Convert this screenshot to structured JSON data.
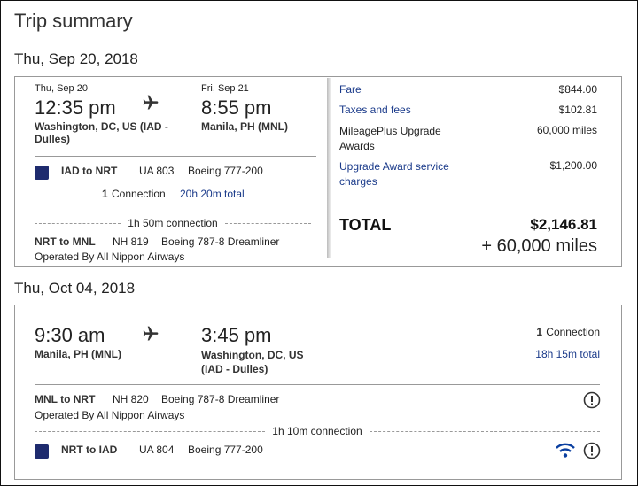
{
  "title": "Trip summary",
  "outbound": {
    "date": "Thu, Sep 20, 2018",
    "depart": {
      "date": "Thu, Sep 20",
      "time": "12:35 pm",
      "place": "Washington, DC, US (IAD - Dulles)"
    },
    "arrive": {
      "date": "Fri, Sep 21",
      "time": "8:55 pm",
      "place": "Manila, PH (MNL)"
    },
    "connections": "1",
    "connection_label": "Connection",
    "total": "20h 20m total",
    "segments": [
      {
        "route": "IAD to NRT",
        "flight": "UA 803",
        "aircraft": "Boeing 777-200"
      },
      {
        "route": "NRT to MNL",
        "flight": "NH 819",
        "aircraft": "Boeing 787-8 Dreamliner",
        "operated": "Operated By All Nippon Airways"
      }
    ],
    "layover": "1h 50m connection"
  },
  "pricing": {
    "rows": [
      {
        "label": "Fare",
        "value": "$844.00"
      },
      {
        "label": "Taxes and fees",
        "value": "$102.81"
      },
      {
        "label": "MileagePlus Upgrade Awards",
        "value": "60,000 miles"
      },
      {
        "label": "Upgrade Award service charges",
        "value": "$1,200.00"
      }
    ],
    "total_label": "TOTAL",
    "total": "$2,146.81",
    "total_miles": "+ 60,000 miles"
  },
  "return": {
    "date": "Thu, Oct 04, 2018",
    "depart": {
      "time": "9:30 am",
      "place": "Manila, PH (MNL)"
    },
    "arrive": {
      "time": "3:45 pm",
      "place": "Washington, DC, US (IAD - Dulles)"
    },
    "connections": "1",
    "connection_label": "Connection",
    "total": "18h 15m total",
    "segments": [
      {
        "route": "MNL to NRT",
        "flight": "NH 820",
        "aircraft": "Boeing 787-8 Dreamliner",
        "operated": "Operated By All Nippon Airways"
      },
      {
        "route": "NRT to IAD",
        "flight": "UA 804",
        "aircraft": "Boeing 777-200"
      }
    ],
    "layover": "1h 10m connection"
  }
}
